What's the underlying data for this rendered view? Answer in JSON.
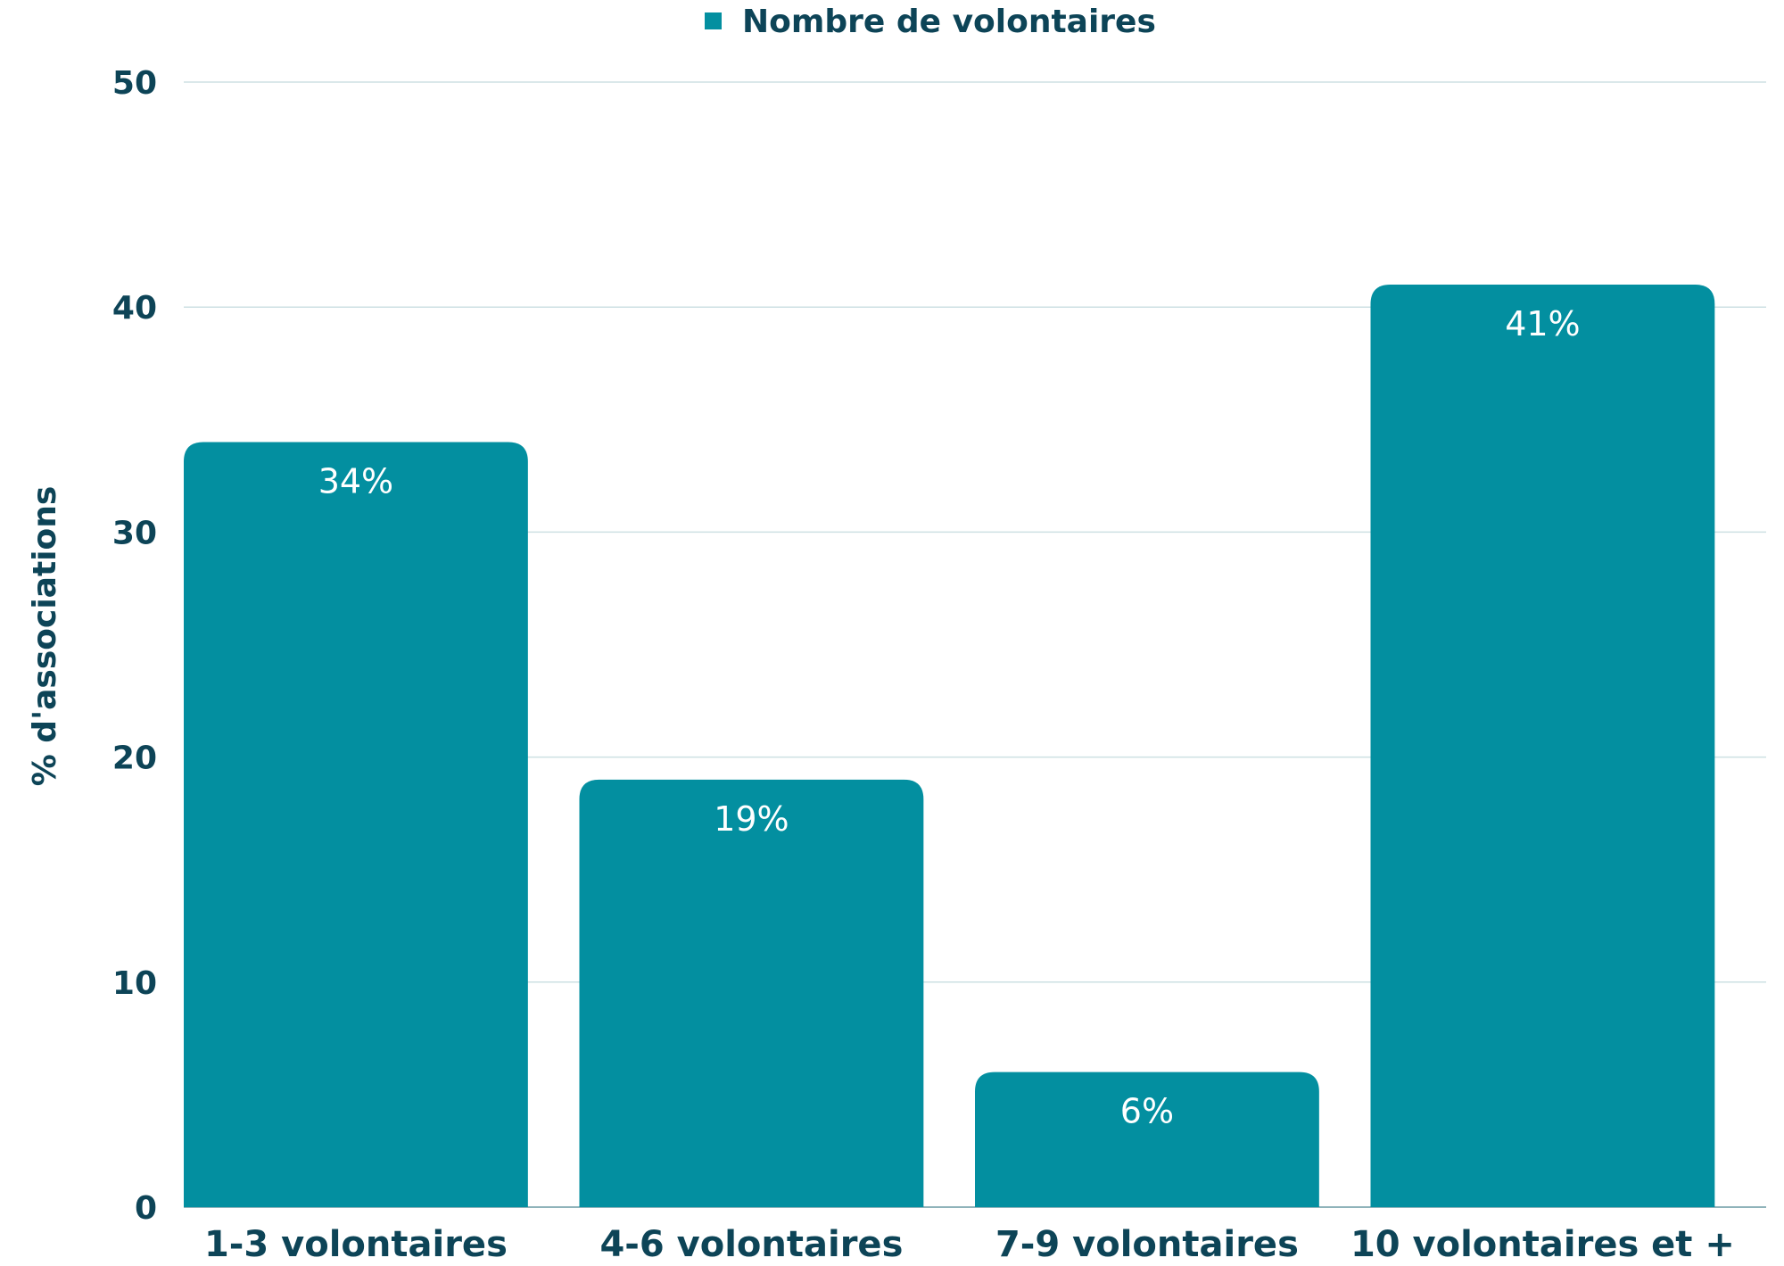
{
  "chart_data": {
    "type": "bar",
    "categories": [
      "1-3 volontaires",
      "4-6 volontaires",
      "7-9 volontaires",
      "10 volontaires et +"
    ],
    "series": [
      {
        "name": "Nombre de volontaires",
        "values": [
          34,
          19,
          6,
          41
        ],
        "data_labels": [
          "34%",
          "19%",
          "6%",
          "41%"
        ]
      }
    ],
    "xlabel": "",
    "ylabel": "% d'associations",
    "ylim": [
      0,
      50
    ],
    "yticks": [
      "0",
      "10",
      "20",
      "30",
      "40",
      "50"
    ],
    "grid": true,
    "legend": "top-center",
    "colors": {
      "bar": "#038fa0",
      "text": "#0d4457",
      "grid": "#cde0e3",
      "data_label": "#ffffff"
    }
  }
}
